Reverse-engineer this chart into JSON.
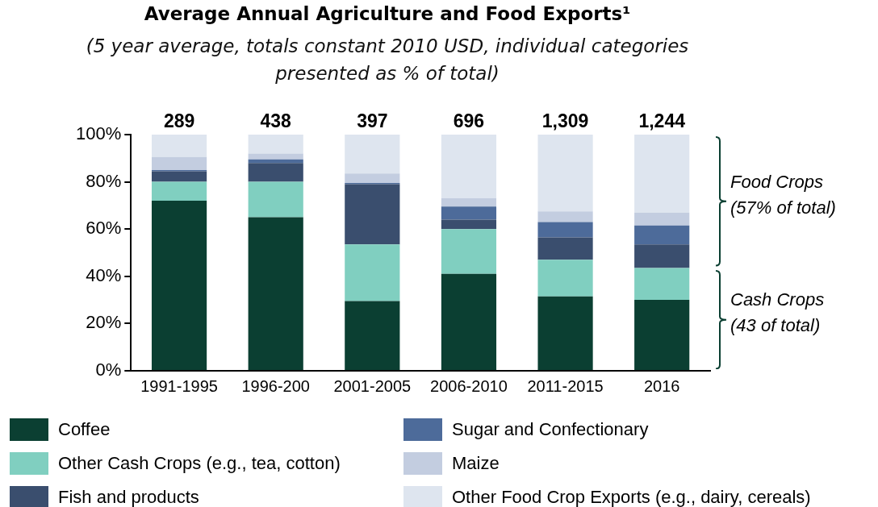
{
  "chart_data": {
    "type": "bar",
    "stacked": true,
    "title": "Average Annual Agriculture and Food Exports¹",
    "subtitle": "(5 year average, totals constant 2010 USD, individual categories presented as % of total)",
    "categories": [
      "1991-1995",
      "1996-200",
      "2001-2005",
      "2006-2010",
      "2011-2015",
      "2016"
    ],
    "series": [
      {
        "name": "Coffee",
        "color": "#0b3f32",
        "values": [
          72,
          65,
          29.5,
          41,
          31.5,
          30
        ]
      },
      {
        "name": "Other Cash Crops (e.g., tea, cotton)",
        "color": "#80cfc0",
        "values": [
          8,
          15,
          24,
          19,
          15.5,
          13.5
        ]
      },
      {
        "name": "Fish and products",
        "color": "#3a4e6e",
        "values": [
          4.5,
          8,
          25.5,
          4,
          9.5,
          10
        ]
      },
      {
        "name": "Sugar and Confectionary",
        "color": "#4d6b9a",
        "values": [
          0.5,
          1.5,
          0.5,
          5.5,
          6.5,
          8
        ]
      },
      {
        "name": "Maize",
        "color": "#c3cde0",
        "values": [
          5.5,
          2.5,
          4,
          3.5,
          4.5,
          5.5
        ]
      },
      {
        "name": "Other Food Crop Exports (e.g., dairy, cereals)",
        "color": "#dee5ef",
        "values": [
          9.5,
          8,
          16.5,
          27,
          32.5,
          33
        ]
      }
    ],
    "ylim": [
      0,
      100
    ],
    "yticks": [
      {
        "value": 0,
        "label": "0%"
      },
      {
        "value": 20,
        "label": "20%"
      },
      {
        "value": 40,
        "label": "40%"
      },
      {
        "value": 60,
        "label": "60%"
      },
      {
        "value": 80,
        "label": "80%"
      },
      {
        "value": 100,
        "label": "100%"
      }
    ],
    "annotations": [
      {
        "text": "289",
        "x": "1991-1995",
        "y": 100
      },
      {
        "text": "438",
        "x": "1996-200",
        "y": 100
      },
      {
        "text": "397",
        "x": "2001-2005",
        "y": 100
      },
      {
        "text": "696",
        "x": "2006-2010",
        "y": 100
      },
      {
        "text": "1,309",
        "x": "2011-2015",
        "y": 100
      },
      {
        "text": "1,244",
        "x": "2016",
        "y": 100
      },
      "Food Crops\n(57% of total)",
      "Cash Crops\n(43 of total)"
    ],
    "grid": false,
    "legend": "bottom"
  }
}
